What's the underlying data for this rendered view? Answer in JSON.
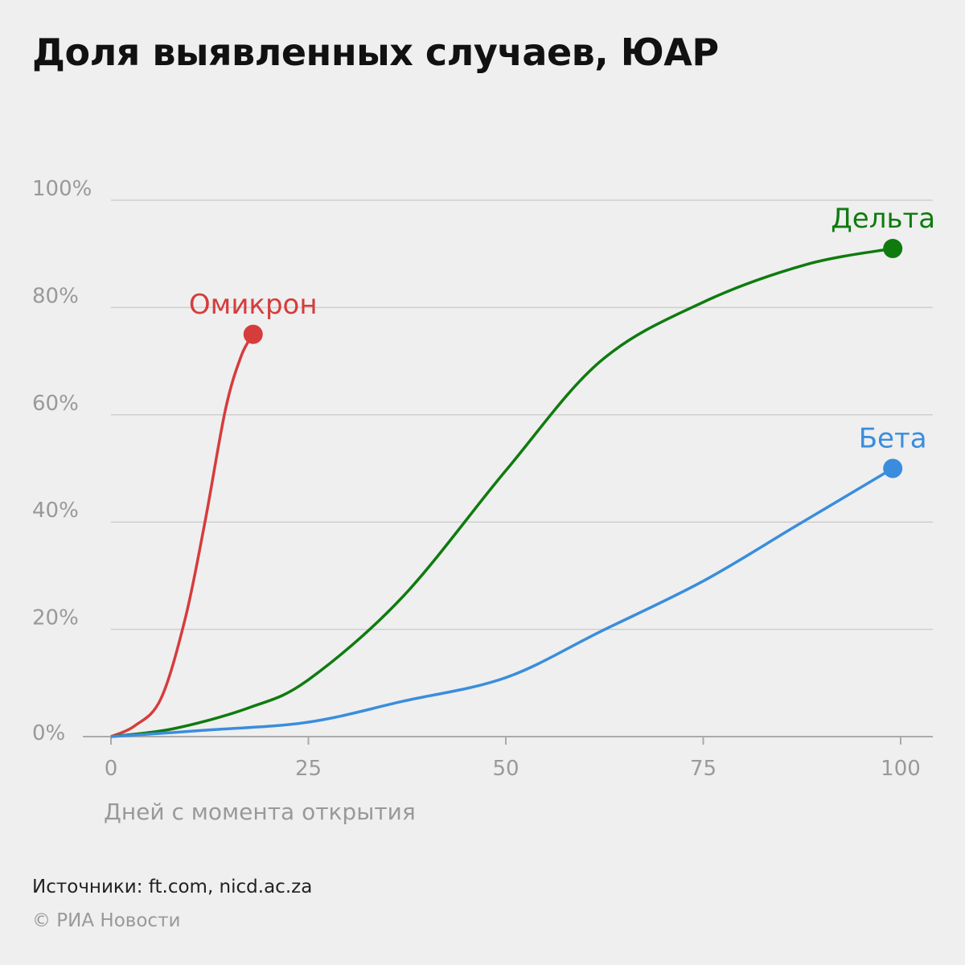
{
  "chart_data": {
    "type": "line",
    "title": "Доля выявленных случаев, ЮАР",
    "xlabel": "Дней с момента открытия",
    "ylabel": "",
    "xlim": [
      0,
      100
    ],
    "ylim": [
      0,
      100
    ],
    "x_ticks": [
      "0",
      "25",
      "50",
      "75",
      "100"
    ],
    "y_ticks": [
      "0%",
      "20%",
      "40%",
      "60%",
      "80%",
      "100%"
    ],
    "grid": "horizontal",
    "legend": "direct labels at series end points",
    "series": [
      {
        "name": "Омикрон",
        "color": "#d63c3c",
        "x": [
          0,
          3,
          6.3,
          9.4,
          11.9,
          14.5,
          16.5,
          18
        ],
        "y": [
          0,
          2,
          7,
          22,
          40,
          61,
          71,
          75
        ]
      },
      {
        "name": "Дельта",
        "color": "#0f7b0f",
        "x": [
          0,
          8,
          17.5,
          25,
          36.9,
          50,
          62,
          75,
          88,
          99
        ],
        "y": [
          0,
          1.5,
          5.4,
          10.6,
          26,
          49.6,
          70,
          81,
          88,
          91
        ]
      },
      {
        "name": "Бета",
        "color": "#3a8ddd",
        "x": [
          0,
          12,
          25,
          37,
          50,
          62,
          75,
          87,
          99
        ],
        "y": [
          0,
          1.2,
          2.7,
          6.6,
          11,
          19.6,
          29,
          39.5,
          50
        ]
      }
    ]
  },
  "footer": {
    "source": "Источники: ft.com, nicd.ac.za",
    "copyright": "© РИА Новости"
  }
}
